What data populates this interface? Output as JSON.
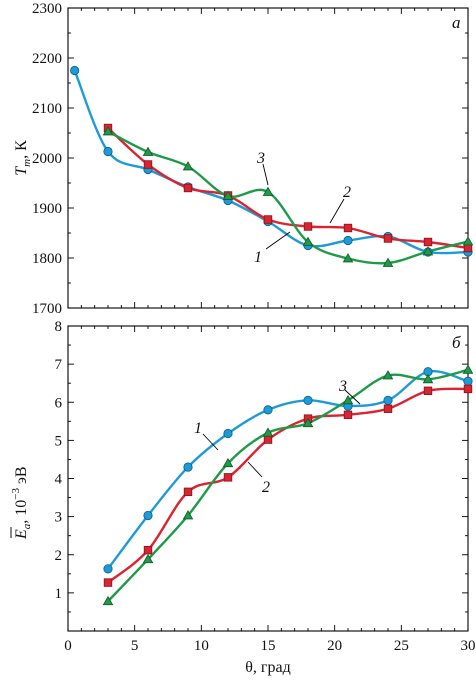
{
  "chart_data": [
    {
      "type": "line",
      "panel": "a",
      "panel_label": "а",
      "ylabel": "T",
      "ylabel_sub": "m",
      "ylabel_unit": ", К",
      "xlabel": "",
      "xlim": [
        0,
        30
      ],
      "ylim": [
        1700,
        2300
      ],
      "xticks": [
        0,
        5,
        10,
        15,
        20,
        25,
        30
      ],
      "yticks": [
        1700,
        1800,
        1900,
        2000,
        2100,
        2200,
        2300
      ],
      "grid": false,
      "series": [
        {
          "name": "1",
          "color": "#1e9ad6",
          "marker": "circle",
          "x": [
            0.5,
            3,
            6,
            9,
            12,
            15,
            18,
            21,
            24,
            27,
            30
          ],
          "y": [
            2175,
            2013,
            1977,
            1942,
            1915,
            1873,
            1825,
            1835,
            1843,
            1812,
            1812
          ]
        },
        {
          "name": "2",
          "color": "#d92431",
          "marker": "square",
          "x": [
            3,
            6,
            9,
            12,
            15,
            18,
            21,
            24,
            27,
            30
          ],
          "y": [
            2060,
            1987,
            1940,
            1925,
            1877,
            1863,
            1860,
            1839,
            1832,
            1820
          ]
        },
        {
          "name": "3",
          "color": "#1f9a48",
          "marker": "triangle",
          "x": [
            3,
            6,
            9,
            12,
            15,
            18,
            21,
            24,
            27,
            30
          ],
          "y": [
            2053,
            2012,
            1983,
            1924,
            1932,
            1832,
            1799,
            1790,
            1813,
            1833
          ]
        }
      ]
    },
    {
      "type": "line",
      "panel": "b",
      "panel_label": "б",
      "ylabel": "E",
      "ylabel_sub": "a",
      "ylabel_unit": ", 10",
      "ylabel_exp": "−3",
      "ylabel_unit2": " эВ",
      "xlabel": "θ, град",
      "xlim": [
        0,
        30
      ],
      "ylim": [
        0,
        8
      ],
      "xticks": [
        0,
        5,
        10,
        15,
        20,
        25,
        30
      ],
      "yticks": [
        1,
        2,
        3,
        4,
        5,
        6,
        7,
        8
      ],
      "grid": false,
      "series": [
        {
          "name": "1",
          "color": "#1e9ad6",
          "marker": "circle",
          "x": [
            3,
            6,
            9,
            12,
            15,
            18,
            21,
            24,
            27,
            30
          ],
          "y": [
            1.63,
            3.03,
            4.3,
            5.18,
            5.8,
            6.05,
            5.9,
            6.05,
            6.8,
            6.55
          ]
        },
        {
          "name": "2",
          "color": "#d92431",
          "marker": "square",
          "x": [
            3,
            6,
            9,
            12,
            15,
            18,
            21,
            24,
            27,
            30
          ],
          "y": [
            1.27,
            2.12,
            3.65,
            4.03,
            5.02,
            5.57,
            5.67,
            5.83,
            6.3,
            6.35
          ]
        },
        {
          "name": "3",
          "color": "#1f9a48",
          "marker": "triangle",
          "x": [
            3,
            6,
            9,
            12,
            15,
            18,
            21,
            24,
            27,
            30
          ],
          "y": [
            0.78,
            1.88,
            3.03,
            4.4,
            5.2,
            5.45,
            6.05,
            6.7,
            6.6,
            6.85
          ]
        }
      ]
    }
  ]
}
